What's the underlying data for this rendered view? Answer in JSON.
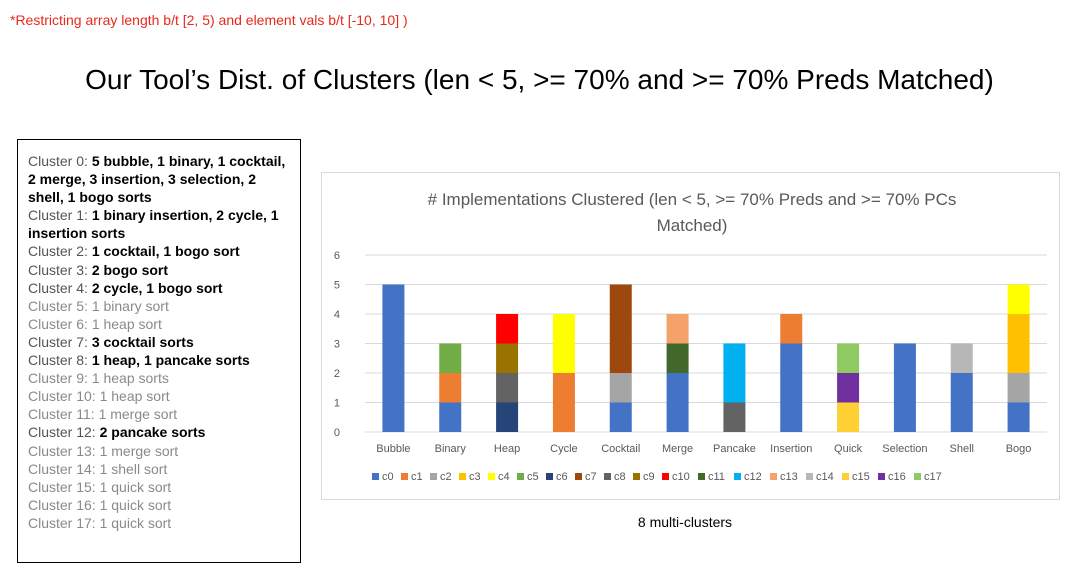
{
  "note": "*Restricting  array length b/t [2, 5) and element vals b/t [-10, 10] )",
  "slide_title": "Our Tool’s Dist. of Clusters (len < 5, >= 70% and >= 70%  Preds Matched)",
  "caption": "8 multi-clusters",
  "clusters": [
    {
      "label": "Cluster 0:",
      "desc": "5 bubble, 1 binary, 1 cocktail, 2 merge, 3 insertion, 3 selection, 2 shell, 1 bogo sorts",
      "multi": true
    },
    {
      "label": "Cluster 1:",
      "desc": "1 binary insertion, 2 cycle, 1 insertion sorts",
      "multi": true
    },
    {
      "label": "Cluster 2:",
      "desc": "1 cocktail, 1 bogo sort",
      "multi": true
    },
    {
      "label": "Cluster 3:",
      "desc": "2 bogo sort",
      "multi": true
    },
    {
      "label": "Cluster 4:",
      "desc": "2 cycle, 1 bogo sort",
      "multi": true
    },
    {
      "label": "Cluster 5:",
      "desc": "1 binary sort",
      "multi": false
    },
    {
      "label": "Cluster 6:",
      "desc": "1 heap sort",
      "multi": false
    },
    {
      "label": "Cluster 7:",
      "desc": "3 cocktail sorts",
      "multi": true
    },
    {
      "label": "Cluster 8:",
      "desc": "1 heap, 1 pancake sorts",
      "multi": true
    },
    {
      "label": "Cluster 9:",
      "desc": "1 heap sorts",
      "multi": false
    },
    {
      "label": "Cluster 10:",
      "desc": "1 heap sort",
      "multi": false
    },
    {
      "label": "Cluster 11:",
      "desc": "1 merge sort",
      "multi": false
    },
    {
      "label": "Cluster 12:",
      "desc": "2 pancake sorts",
      "multi": true
    },
    {
      "label": "Cluster 13:",
      "desc": "1 merge sort",
      "multi": false
    },
    {
      "label": "Cluster 14:",
      "desc": "1 shell sort",
      "multi": false
    },
    {
      "label": "Cluster 15:",
      "desc": "1 quick sort",
      "multi": false
    },
    {
      "label": "Cluster 16:",
      "desc": "1 quick sort",
      "multi": false
    },
    {
      "label": "Cluster 17:",
      "desc": "1 quick sort",
      "multi": false
    }
  ],
  "chart_data": {
    "type": "bar",
    "stacked": true,
    "title": "# Implementations Clustered (len < 5, >= 70% Preds and >= 70% PCs Matched)",
    "title_lines": [
      "# Implementations Clustered (len < 5, >= 70% Preds and >= 70% PCs",
      "Matched)"
    ],
    "categories": [
      "Bubble",
      "Binary",
      "Heap",
      "Cycle",
      "Cocktail",
      "Merge",
      "Pancake",
      "Insertion",
      "Quick",
      "Selection",
      "Shell",
      "Bogo"
    ],
    "ylim": [
      0,
      6
    ],
    "yticks": [
      0,
      1,
      2,
      3,
      4,
      5,
      6
    ],
    "grid": true,
    "legend_position": "bottom",
    "series": [
      {
        "name": "c0",
        "color": "#4472c4",
        "values": [
          5,
          1,
          0,
          0,
          1,
          2,
          0,
          3,
          0,
          3,
          2,
          1
        ]
      },
      {
        "name": "c1",
        "color": "#ed7d31",
        "values": [
          0,
          1,
          0,
          2,
          0,
          0,
          0,
          1,
          0,
          0,
          0,
          0
        ]
      },
      {
        "name": "c2",
        "color": "#a5a5a5",
        "values": [
          0,
          0,
          0,
          0,
          1,
          0,
          0,
          0,
          0,
          0,
          0,
          1
        ]
      },
      {
        "name": "c3",
        "color": "#ffc000",
        "values": [
          0,
          0,
          0,
          0,
          0,
          0,
          0,
          0,
          0,
          0,
          0,
          2
        ]
      },
      {
        "name": "c4",
        "color": "#ffff00",
        "values": [
          0,
          0,
          0,
          2,
          0,
          0,
          0,
          0,
          0,
          0,
          0,
          1
        ]
      },
      {
        "name": "c5",
        "color": "#70ad47",
        "values": [
          0,
          1,
          0,
          0,
          0,
          0,
          0,
          0,
          0,
          0,
          0,
          0
        ]
      },
      {
        "name": "c6",
        "color": "#264478",
        "values": [
          0,
          0,
          1,
          0,
          0,
          0,
          0,
          0,
          0,
          0,
          0,
          0
        ]
      },
      {
        "name": "c7",
        "color": "#9e480e",
        "values": [
          0,
          0,
          0,
          0,
          3,
          0,
          0,
          0,
          0,
          0,
          0,
          0
        ]
      },
      {
        "name": "c8",
        "color": "#636363",
        "values": [
          0,
          0,
          1,
          0,
          0,
          0,
          1,
          0,
          0,
          0,
          0,
          0
        ]
      },
      {
        "name": "c9",
        "color": "#997300",
        "values": [
          0,
          0,
          1,
          0,
          0,
          0,
          0,
          0,
          0,
          0,
          0,
          0
        ]
      },
      {
        "name": "c10",
        "color": "#ff0000",
        "values": [
          0,
          0,
          1,
          0,
          0,
          0,
          0,
          0,
          0,
          0,
          0,
          0
        ]
      },
      {
        "name": "c11",
        "color": "#43682b",
        "values": [
          0,
          0,
          0,
          0,
          0,
          1,
          0,
          0,
          0,
          0,
          0,
          0
        ]
      },
      {
        "name": "c12",
        "color": "#00b0f0",
        "values": [
          0,
          0,
          0,
          0,
          0,
          0,
          2,
          0,
          0,
          0,
          0,
          0
        ]
      },
      {
        "name": "c13",
        "color": "#f4a16a",
        "values": [
          0,
          0,
          0,
          0,
          0,
          1,
          0,
          0,
          0,
          0,
          0,
          0
        ]
      },
      {
        "name": "c14",
        "color": "#b7b7b7",
        "values": [
          0,
          0,
          0,
          0,
          0,
          0,
          0,
          0,
          0,
          0,
          1,
          0
        ]
      },
      {
        "name": "c15",
        "color": "#ffd033",
        "values": [
          0,
          0,
          0,
          0,
          0,
          0,
          0,
          0,
          1,
          0,
          0,
          0
        ]
      },
      {
        "name": "c16",
        "color": "#7030a0",
        "values": [
          0,
          0,
          0,
          0,
          0,
          0,
          0,
          0,
          1,
          0,
          0,
          0
        ]
      },
      {
        "name": "c17",
        "color": "#8fcb62",
        "values": [
          0,
          0,
          0,
          0,
          0,
          0,
          0,
          0,
          1,
          0,
          0,
          0
        ]
      }
    ]
  }
}
